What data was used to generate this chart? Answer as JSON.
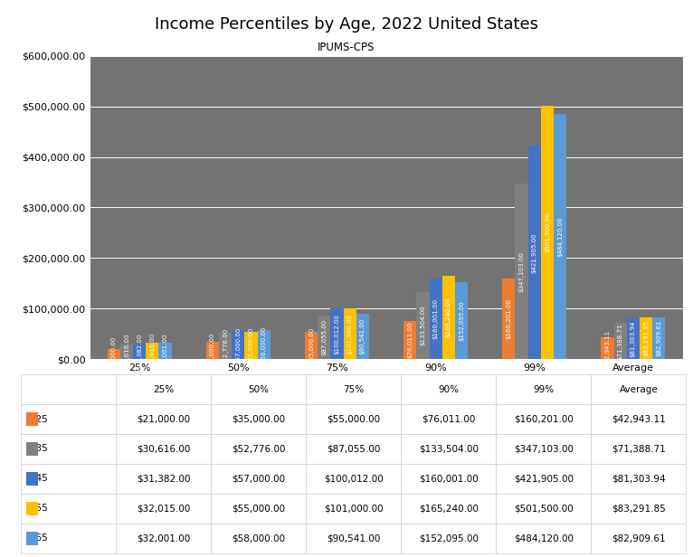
{
  "title": "Income Percentiles by Age, 2022 United States",
  "subtitle": "IPUMS-CPS",
  "categories": [
    "25%",
    "50%",
    "75%",
    "90%",
    "99%",
    "Average"
  ],
  "ages": [
    "25",
    "35",
    "45",
    "55",
    "65"
  ],
  "colors": [
    "#ED7D31",
    "#808080",
    "#4472C4",
    "#FFC000",
    "#5B9BD5"
  ],
  "data": {
    "25": [
      21000.0,
      35000.0,
      55000.0,
      76011.0,
      160201.0,
      42943.11
    ],
    "35": [
      30616.0,
      52776.0,
      87055.0,
      133504.0,
      347103.0,
      71388.71
    ],
    "45": [
      31382.0,
      57000.0,
      100012.0,
      160001.0,
      421905.0,
      81303.94
    ],
    "55": [
      32015.0,
      55000.0,
      101000.0,
      165240.0,
      501500.0,
      83291.85
    ],
    "65": [
      32001.0,
      58000.0,
      90541.0,
      152095.0,
      484120.0,
      82909.61
    ]
  },
  "ylim": [
    0,
    600000
  ],
  "plot_bg_color": "#737373",
  "fig_bg_color": "#FFFFFF",
  "grid_color": "#FFFFFF",
  "bar_label_fontsize": 5.0,
  "bar_label_color": "#FFFFFF",
  "title_fontsize": 13,
  "subtitle_fontsize": 8.5,
  "table_fontsize": 7.5,
  "tick_fontsize": 8,
  "bar_width": 0.13
}
